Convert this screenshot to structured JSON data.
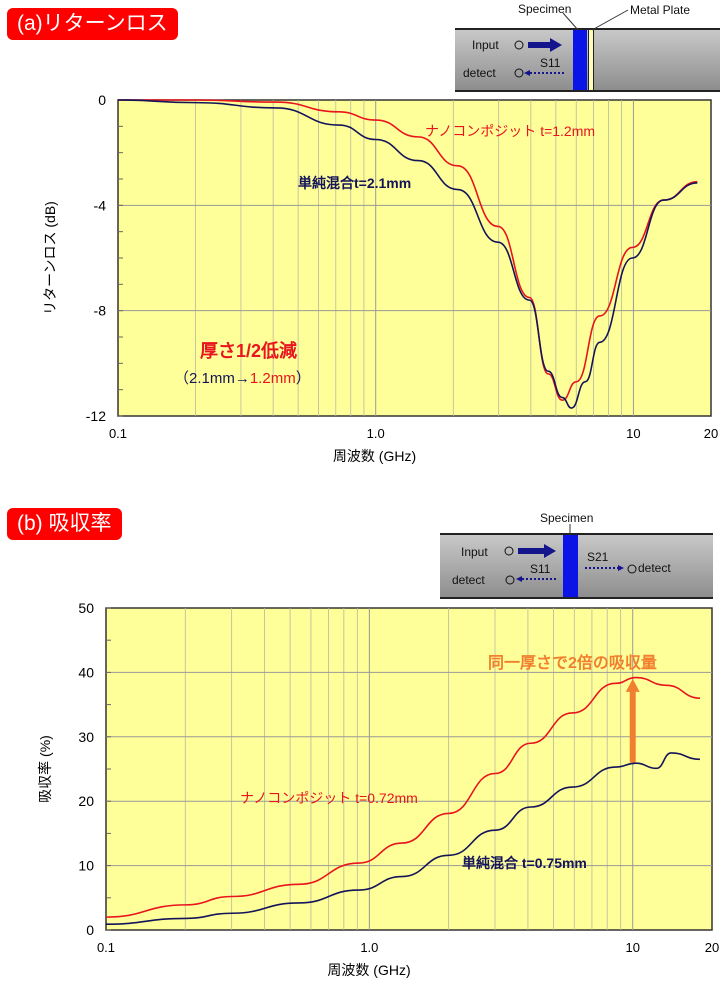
{
  "panel_a": {
    "header": "(a)リターンロス",
    "diagram": {
      "specimen": "Specimen",
      "metal_plate": "Metal Plate",
      "input": "Input",
      "detect": "detect",
      "s11": "S11"
    },
    "annotation_title": "厚さ1/2低減",
    "annotation_open": "（2.1mm→",
    "annotation_new": "1.2mm",
    "annotation_close": "）"
  },
  "panel_b": {
    "header": "(b) 吸収率",
    "diagram": {
      "specimen": "Specimen",
      "input": "Input",
      "detect_left": "detect",
      "detect_right": "detect",
      "s11": "S11",
      "s21": "S21"
    },
    "annotation": "同一厚さで2倍の吸収量"
  },
  "colors": {
    "plot_bg": "#ffff99",
    "red": "#e8141e",
    "navy": "#14145a",
    "orange": "#f08030",
    "header": "#ff0000"
  },
  "chart_data": [
    {
      "type": "line",
      "title": "(a)リターンロス",
      "xlabel": "周波数 (GHz)",
      "ylabel": "リターンロス (dB)",
      "xscale": "log",
      "xlim": [
        0.1,
        20
      ],
      "ylim": [
        -12,
        0
      ],
      "xticks": [
        "0.1",
        "1.0",
        "10",
        "20"
      ],
      "xtick_values": [
        0.1,
        1,
        10,
        20
      ],
      "yticks": [
        "0",
        "-4",
        "-8",
        "-12"
      ],
      "ytick_values": [
        0,
        -4,
        -8,
        -12
      ],
      "grid": true,
      "series": [
        {
          "name": "ナノコンポジット  t=1.2mm",
          "color": "#e8141e",
          "x": [
            0.1,
            0.2,
            0.41,
            0.72,
            1.0,
            1.46,
            2.08,
            2.98,
            3.95,
            4.67,
            5.3,
            6.0,
            7.4,
            9.9,
            13.1,
            17.7
          ],
          "y": [
            0,
            0,
            -0.08,
            -0.45,
            -0.76,
            -1.4,
            -2.5,
            -4.8,
            -7.5,
            -10.4,
            -11.4,
            -10.7,
            -8.2,
            -5.6,
            -3.8,
            -3.1
          ]
        },
        {
          "name": "単純混合t=2.1mm",
          "color": "#14145a",
          "x": [
            0.1,
            0.2,
            0.41,
            0.72,
            1.0,
            1.46,
            2.08,
            2.98,
            3.95,
            4.67,
            5.3,
            5.75,
            6.5,
            7.4,
            9.9,
            13.1,
            17.7
          ],
          "y": [
            0,
            -0.1,
            -0.3,
            -0.95,
            -1.5,
            -2.3,
            -3.4,
            -5.4,
            -7.6,
            -10.3,
            -11.3,
            -11.7,
            -10.7,
            -9.2,
            -6.0,
            -3.8,
            -3.15
          ]
        }
      ]
    },
    {
      "type": "line",
      "title": "(b) 吸収率",
      "xlabel": "周波数 (GHz)",
      "ylabel": "吸収率 (%)",
      "xscale": "log",
      "xlim": [
        0.1,
        20
      ],
      "ylim": [
        0,
        50
      ],
      "xticks": [
        "0.1",
        "1.0",
        "10",
        "20"
      ],
      "xtick_values": [
        0.1,
        1,
        10,
        20
      ],
      "yticks": [
        "0",
        "10",
        "20",
        "30",
        "40",
        "50"
      ],
      "ytick_values": [
        0,
        10,
        20,
        30,
        40,
        50
      ],
      "grid": true,
      "series": [
        {
          "name": "ナノコンポジット  t=0.72mm",
          "color": "#e8141e",
          "x": [
            0.1,
            0.2,
            0.3,
            0.54,
            0.91,
            1.33,
            2.0,
            3.0,
            4.1,
            5.9,
            8.6,
            10.3,
            13.4,
            18
          ],
          "y": [
            2.0,
            3.9,
            5.2,
            7.1,
            10.4,
            13.5,
            18.1,
            24.3,
            29,
            33.7,
            38.3,
            39.2,
            38,
            36
          ]
        },
        {
          "name": "単純混合  t=0.75mm",
          "color": "#14145a",
          "x": [
            0.1,
            0.2,
            0.3,
            0.54,
            0.91,
            1.33,
            2.0,
            3.0,
            4.1,
            5.9,
            8.6,
            10.3,
            12.3,
            14,
            18
          ],
          "y": [
            0.9,
            1.8,
            2.6,
            4.2,
            6.2,
            8.3,
            11.6,
            15.5,
            19.1,
            22.2,
            25.3,
            25.9,
            25.1,
            27.5,
            26.5
          ]
        }
      ],
      "arrow": {
        "x": 10,
        "y_from": 26,
        "y_to": 39
      }
    }
  ]
}
